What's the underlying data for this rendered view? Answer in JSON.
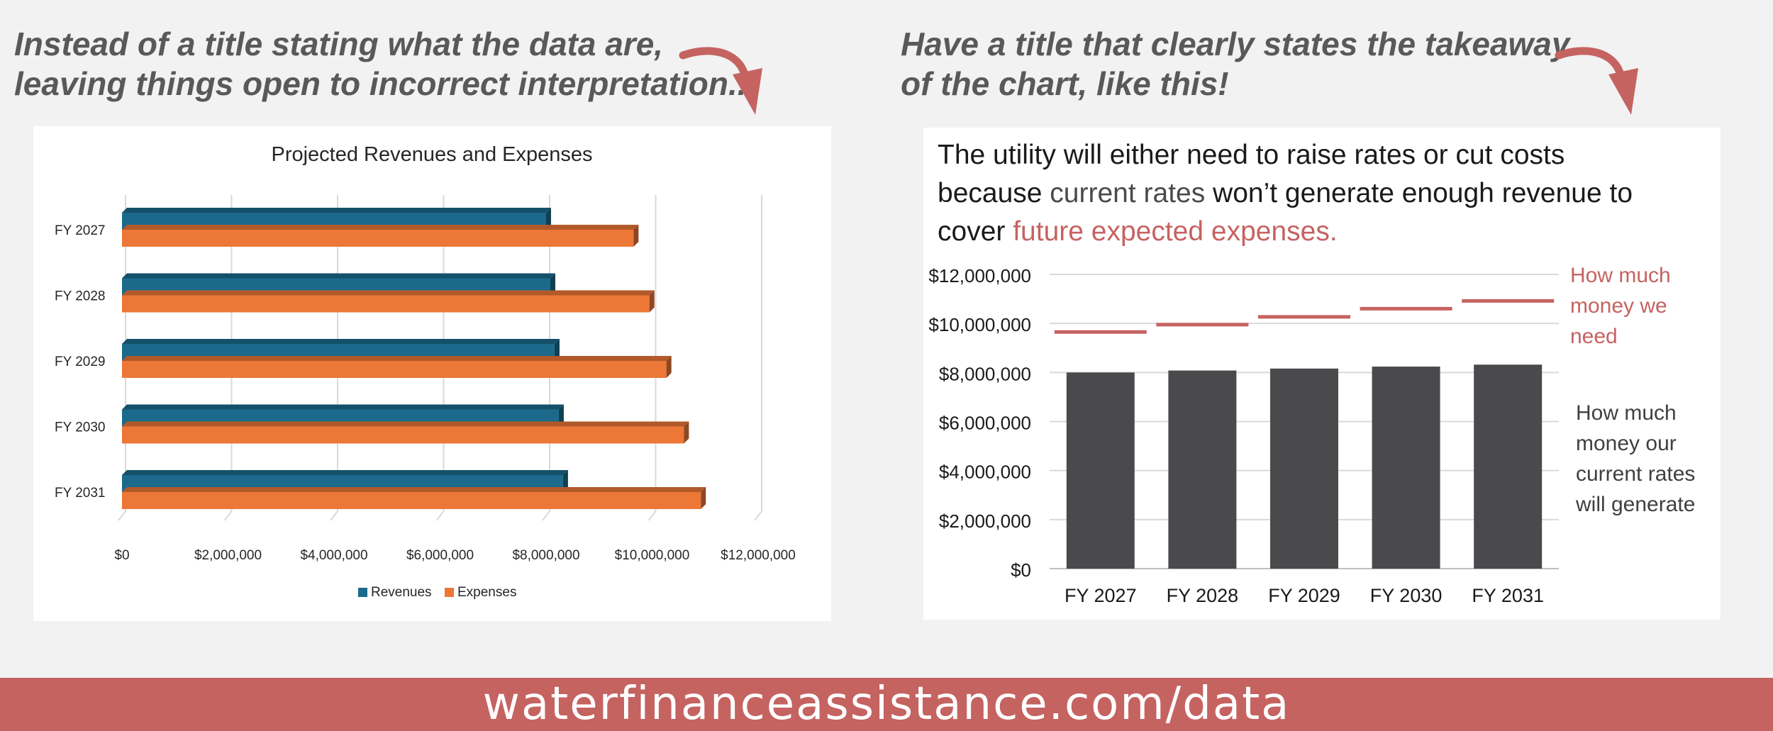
{
  "colors": {
    "page_bg": "#f2f2f2",
    "accent_red": "#c56361",
    "revenue_blue": "#1b6a8c",
    "expense_orange": "#ec7737",
    "bar_dark": "#4a4a4c",
    "caption_gray": "#595959"
  },
  "left_caption": "Instead of a title stating what the data are,\nleaving things open to incorrect interpretation...",
  "right_caption": "Have a title that clearly states the takeaway\nof the chart, like this!",
  "icons": {
    "left_arrow": "curved-arrow-icon",
    "right_arrow": "curved-arrow-icon"
  },
  "right_title": {
    "part1": "The utility will either need to raise rates or cut costs because ",
    "part2": "current rates",
    "part3": " won’t generate enough revenue to cover ",
    "part4": "future expected expenses."
  },
  "annotation_need": "How much\nmoney we\nneed",
  "annotation_generate": "How much\nmoney our\ncurrent rates\nwill generate",
  "footer_url": "waterfinanceassistance.com/data",
  "chart_data": [
    {
      "type": "bar",
      "orientation": "horizontal",
      "title": "Projected Revenues and Expenses",
      "categories": [
        "FY 2027",
        "FY 2028",
        "FY 2029",
        "FY 2030",
        "FY 2031"
      ],
      "series": [
        {
          "name": "Revenues",
          "color": "#1b6a8c",
          "values": [
            8000000,
            8080000,
            8160000,
            8240000,
            8320000
          ]
        },
        {
          "name": "Expenses",
          "color": "#ec7737",
          "values": [
            9650000,
            9950000,
            10270000,
            10600000,
            10920000
          ]
        }
      ],
      "xlim": [
        0,
        12000000
      ],
      "x_ticks": [
        "$0",
        "$2,000,000",
        "$4,000,000",
        "$6,000,000",
        "$8,000,000",
        "$10,000,000",
        "$12,000,000"
      ],
      "grid": true,
      "legend": "bottom"
    },
    {
      "type": "bar",
      "categories": [
        "FY 2027",
        "FY 2028",
        "FY 2029",
        "FY 2030",
        "FY 2031"
      ],
      "series": [
        {
          "color": "#4a4a4c",
          "values": [
            8000000,
            8080000,
            8160000,
            8240000,
            8320000
          ]
        },
        {
          "color": "#c56361",
          "values": [
            9650000,
            9950000,
            10270000,
            10600000,
            10920000
          ]
        }
      ],
      "ylim": [
        0,
        12000000
      ],
      "y_ticks": [
        "$12,000,000",
        "$10,000,000",
        "$8,000,000",
        "$6,000,000",
        "$4,000,000",
        "$2,000,000",
        "$0"
      ],
      "grid": true,
      "legend": "none"
    }
  ]
}
